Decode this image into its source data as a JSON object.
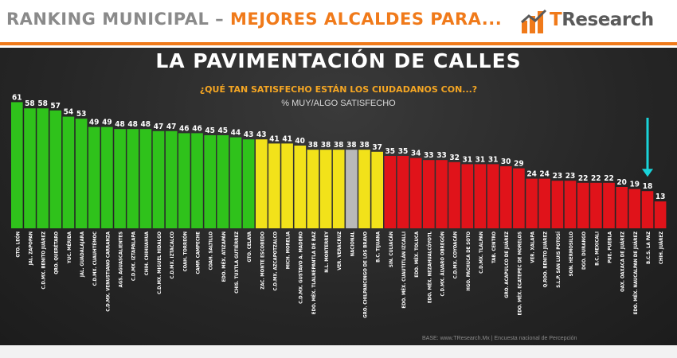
{
  "header": {
    "title_main": "RANKING MUNICIPAL – ",
    "title_highlight": "MEJORES ALCALDES PARA...",
    "logo_text_1": "T",
    "logo_text_2": "Research"
  },
  "colors": {
    "green": "#2fc21b",
    "yellow": "#f2e21a",
    "gray": "#b9b9b9",
    "red": "#e0131a",
    "accent_orange": "#f07a1a",
    "arrow_cyan": "#19d3d9"
  },
  "chart_data": {
    "type": "bar",
    "title": "LA PAVIMENTACIÓN DE CALLES",
    "subtitle": "¿QUÉ TAN SATISFECHO ESTÁN LOS CIUDADANOS CON...?",
    "ylabel": "% MUY/ALGO SATISFECHO",
    "ylim": [
      0,
      70
    ],
    "grid": false,
    "legend": "none",
    "categories": [
      "GTO. LEÓN",
      "JAL. ZAPOPAN",
      "C.D.MX. BENITO JUÁREZ",
      "QRO. QUERÉTARO",
      "YUC. MÉRIDA",
      "JAL. GUADALAJARA",
      "C.D.MX. CUAUHTÉMOC",
      "C.D.MX. VENUSTIANO CARRANZA",
      "AGS. AGUASCALIENTES",
      "C.D.MX. IZTAPALAPA",
      "CHIH. CHIHUAHUA",
      "C.D.MX. MIGUEL HIDALGO",
      "C.D.MX. IZTACALCO",
      "COAH. TORREÓN",
      "CAMP. CAMPECHE",
      "COAH. SALTILLO",
      "EDO. MÉX. ATIZAPÁN",
      "CHIS. TUXTLA GUTIÉRREZ",
      "GTO. CELAYA",
      "ZAC. MONTE ESCOBEDO",
      "C.D.MX. AZCAPOTZALCO",
      "MICH. MORELIA",
      "C.D.MX. GUSTAVO A. MADERO",
      "EDO. MÉX. TLALNEPANTLA DE BAZ",
      "N.L. MONTERREY",
      "VER. VERACRUZ",
      "NACIONAL",
      "GRO. CHILPANCINGO DE LOS BRAVO",
      "B.C. TIJUANA",
      "SIN. CULIACÁN",
      "EDO. MÉX. CUAUTITLÁN IZCALLI",
      "EDO. MÉX. TOLUCA",
      "EDO. MÉX. NEZAHUALCÓYOTL",
      "C.D.MX. ÁLVARO OBREGÓN",
      "C.D.MX. COYOACÁN",
      "HGO. PACHUCA DE SOTO",
      "C.D.MX. TLALPAN",
      "TAB. CENTRO",
      "GRO. ACAPULCO DE JUÁREZ",
      "EDO. MÉX. ECATEPEC DE MORELOS",
      "VER. XALAPA",
      "Q.ROO. BENITO JUÁREZ",
      "S.L.P. SAN LUIS POTOSÍ",
      "SON. HERMOSILLO",
      "DGO. DURANGO",
      "B.C. MEXICALI",
      "PUE. PUEBLA",
      "OAX. OAXACA DE JUÁREZ",
      "EDO. MÉX. NAUCALPAN DE JUÁREZ",
      "B.C.S. LA PAZ",
      "CHIH. JUÁREZ"
    ],
    "values": [
      61,
      58,
      58,
      57,
      54,
      53,
      49,
      49,
      48,
      48,
      48,
      47,
      47,
      46,
      46,
      45,
      45,
      44,
      43,
      43,
      41,
      41,
      40,
      38,
      38,
      38,
      38,
      38,
      37,
      35,
      35,
      34,
      33,
      33,
      32,
      31,
      31,
      31,
      30,
      29,
      24,
      24,
      23,
      23,
      22,
      22,
      22,
      20,
      19,
      18,
      13
    ],
    "bar_colors": [
      "green",
      "green",
      "green",
      "green",
      "green",
      "green",
      "green",
      "green",
      "green",
      "green",
      "green",
      "green",
      "green",
      "green",
      "green",
      "green",
      "green",
      "green",
      "green",
      "yellow",
      "yellow",
      "yellow",
      "yellow",
      "yellow",
      "yellow",
      "yellow",
      "gray",
      "yellow",
      "yellow",
      "red",
      "red",
      "red",
      "red",
      "red",
      "red",
      "red",
      "red",
      "red",
      "red",
      "red",
      "red",
      "red",
      "red",
      "red",
      "red",
      "red",
      "red",
      "red",
      "red",
      "red",
      "red"
    ],
    "highlight_index": 49
  },
  "footer": {
    "note": "BASE: www.TResearch.Mx | Encuesta nacional de Percepción"
  }
}
